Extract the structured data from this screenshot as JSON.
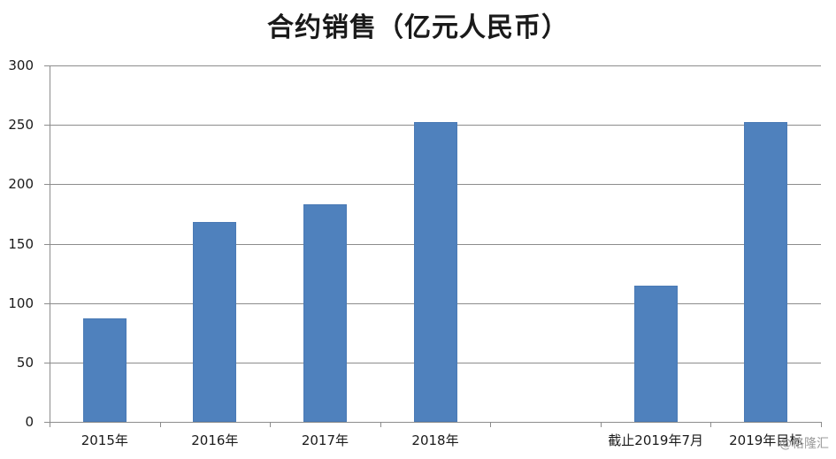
{
  "chart_data": {
    "type": "bar",
    "title": "合约销售（亿元人民币）",
    "xlabel": "",
    "ylabel": "",
    "categories": [
      "2015年",
      "2016年",
      "2017年",
      "2018年",
      "",
      "截止2019年7月",
      "2019年目标"
    ],
    "values": [
      87,
      168,
      183,
      252,
      null,
      115,
      252
    ],
    "ylim": [
      0,
      300
    ],
    "yticks": [
      0,
      50,
      100,
      150,
      200,
      250,
      300
    ],
    "grid": true,
    "legend": null,
    "bar_color": "#4f81bd"
  },
  "watermark": "@格隆汇"
}
